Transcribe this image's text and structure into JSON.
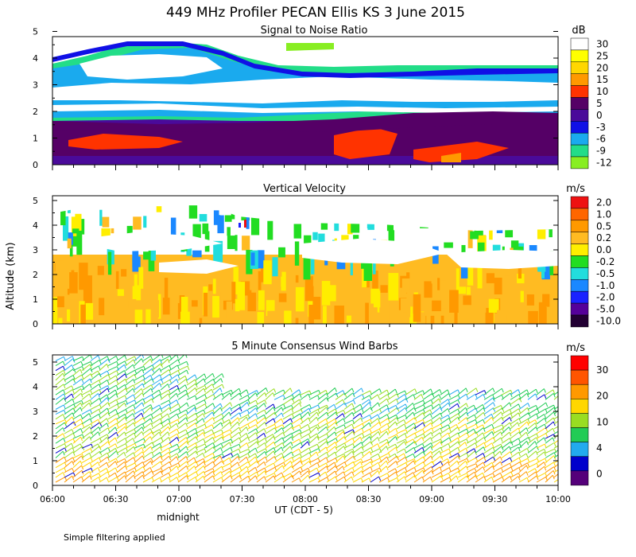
{
  "title": "449 MHz Profiler PECAN Ellis KS  3 June 2015",
  "y_axis_label": "Altitude (km)",
  "x_axis": {
    "ticks": [
      "06:00",
      "06:30",
      "07:00",
      "07:30",
      "08:00",
      "08:30",
      "09:00",
      "09:30",
      "10:00"
    ],
    "label": "UT  (CDT - 5)",
    "annotation": "midnight"
  },
  "footer_note": "Simple filtering applied",
  "chart_data": [
    {
      "type": "heatmap",
      "title": "Signal to Noise Ratio",
      "unit": "dB",
      "xlim": [
        "06:00",
        "10:00"
      ],
      "ylim": [
        0,
        5
      ],
      "y_ticks": [
        "0",
        "1",
        "2",
        "3",
        "4",
        "5"
      ],
      "colorbar": {
        "labels": [
          "30",
          "25",
          "20",
          "15",
          "10",
          "5",
          "0",
          "-3",
          "-6",
          "-9",
          "-12"
        ],
        "colors": [
          "#ffffff",
          "#ffff00",
          "#ffd700",
          "#ff9900",
          "#ff3300",
          "#550066",
          "#4a0a9a",
          "#1010e6",
          "#1aaaee",
          "#22dd88",
          "#88ee22"
        ]
      }
    },
    {
      "type": "heatmap",
      "title": "Vertical Velocity",
      "unit": "m/s",
      "xlim": [
        "06:00",
        "10:00"
      ],
      "ylim": [
        0,
        5
      ],
      "y_ticks": [
        "0",
        "1",
        "2",
        "3",
        "4",
        "5"
      ],
      "colorbar": {
        "labels": [
          "2.0",
          "1.0",
          "0.5",
          "0.2",
          "0.0",
          "-0.2",
          "-0.5",
          "-1.0",
          "-2.0",
          "-5.0",
          "-10.0"
        ],
        "colors": [
          "#ee1111",
          "#ff6600",
          "#ff9900",
          "#ffbb22",
          "#ffee00",
          "#22dd22",
          "#22dddd",
          "#1a88ff",
          "#1a22ff",
          "#55009a",
          "#220033"
        ]
      }
    },
    {
      "type": "wind_barbs",
      "title": "5 Minute Consensus Wind Barbs",
      "unit": "m/s",
      "xlim": [
        "06:00",
        "10:00"
      ],
      "ylim": [
        0,
        5
      ],
      "y_ticks": [
        "0",
        "1",
        "2",
        "3",
        "4",
        "5"
      ],
      "colorbar": {
        "labels": [
          "30",
          "20",
          "10",
          "4",
          "0"
        ],
        "colors": [
          "#ff0000",
          "#ff5500",
          "#ff9900",
          "#ffd700",
          "#99dd22",
          "#22cc55",
          "#22aaee",
          "#0000cc",
          "#55007a"
        ]
      }
    }
  ]
}
